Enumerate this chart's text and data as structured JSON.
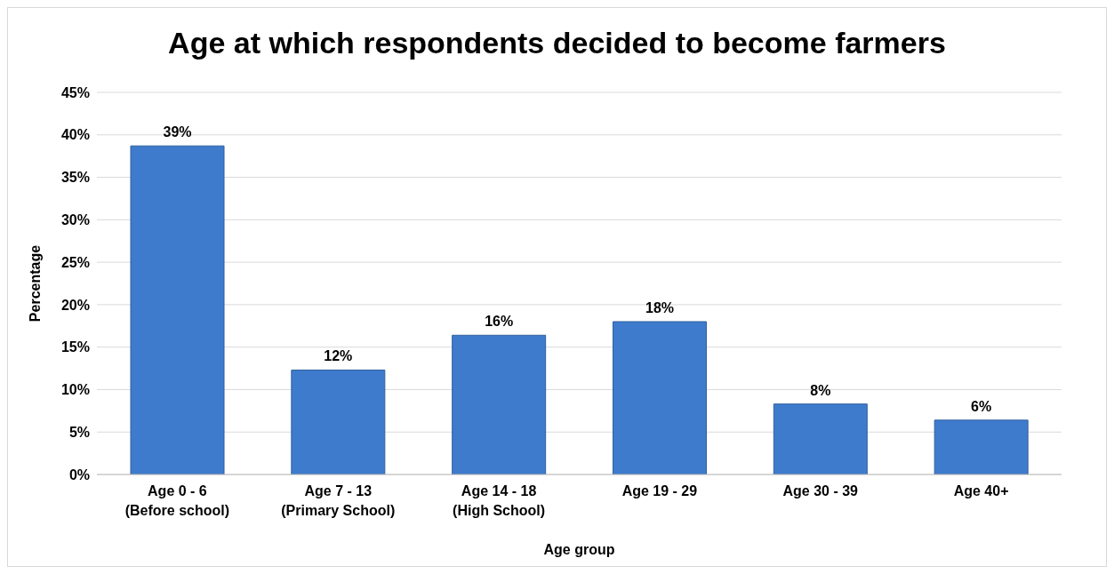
{
  "chart_data": {
    "type": "bar",
    "title": "Age at which respondents decided to become farmers",
    "xlabel": "Age group",
    "ylabel": "Percentage",
    "categories": [
      "Age 0 - 6\n(Before school)",
      "Age 7 - 13\n(Primary School)",
      "Age 14 - 18\n(High School)",
      "Age 19 - 29",
      "Age 30 - 39",
      "Age 40+"
    ],
    "values": [
      38.7,
      12.3,
      16.4,
      18.0,
      8.3,
      6.4
    ],
    "value_labels": [
      "39%",
      "12%",
      "16%",
      "18%",
      "8%",
      "6%"
    ],
    "color": "#3f7bcc",
    "ylim": [
      0,
      45
    ],
    "yticks": [
      {
        "value": 0,
        "label": "0%"
      },
      {
        "value": 5,
        "label": "5%"
      },
      {
        "value": 10,
        "label": "10%"
      },
      {
        "value": 15,
        "label": "15%"
      },
      {
        "value": 20,
        "label": "20%"
      },
      {
        "value": 25,
        "label": "25%"
      },
      {
        "value": 30,
        "label": "30%"
      },
      {
        "value": 35,
        "label": "35%"
      },
      {
        "value": 40,
        "label": "40%"
      },
      {
        "value": 45,
        "label": "45%"
      }
    ],
    "grid": "y"
  }
}
